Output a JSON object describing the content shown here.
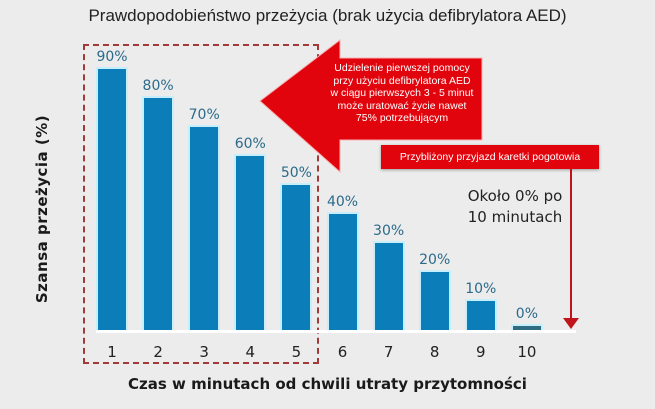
{
  "title": "Prawdopodobieństwo przeżycia (brak użycia defibrylatora AED)",
  "callout": {
    "lines": [
      "Udzielenie pierwszej pomocy",
      "przy użyciu defibrylatora AED",
      "w ciągu pierwszych 3 - 5 minut",
      "może uratować życie nawet",
      "75% potrzebującym"
    ],
    "color": "#e2040c"
  },
  "ambulance_label": "Przybliżony przyjazd karetki pogotowia",
  "note": {
    "line1": "Około 0% po",
    "line2": "10 minutach"
  },
  "colors": {
    "bar": "#0b7db8",
    "bar_glow": "#c7eefb",
    "accent_red": "#e2040c",
    "dash_box": "#a23a3a"
  },
  "chart_data": {
    "type": "bar",
    "title": "Prawdopodobieństwo przeżycia (brak użycia defibrylatora AED)",
    "xlabel": "Czas w minutach od chwili utraty przytomności",
    "ylabel": "Szansa przeżycia (%)",
    "categories": [
      "1",
      "2",
      "3",
      "4",
      "5",
      "6",
      "7",
      "8",
      "9",
      "10"
    ],
    "values": [
      90,
      80,
      70,
      60,
      50,
      40,
      30,
      20,
      10,
      0
    ],
    "value_labels": [
      "90%",
      "80%",
      "70%",
      "60%",
      "50%",
      "40%",
      "30%",
      "20%",
      "10%",
      "0%"
    ],
    "ylim": [
      0,
      100
    ],
    "grid": false,
    "annotations": [
      "Udzielenie pierwszej pomocy przy użyciu defibrylatora AED w ciągu pierwszych 3 - 5 minut może uratować życie nawet 75% potrzebującym",
      "Przybliżony przyjazd karetki pogotowia",
      "Około 0% po 10 minutach"
    ],
    "highlight_range": [
      "1",
      "5"
    ]
  }
}
